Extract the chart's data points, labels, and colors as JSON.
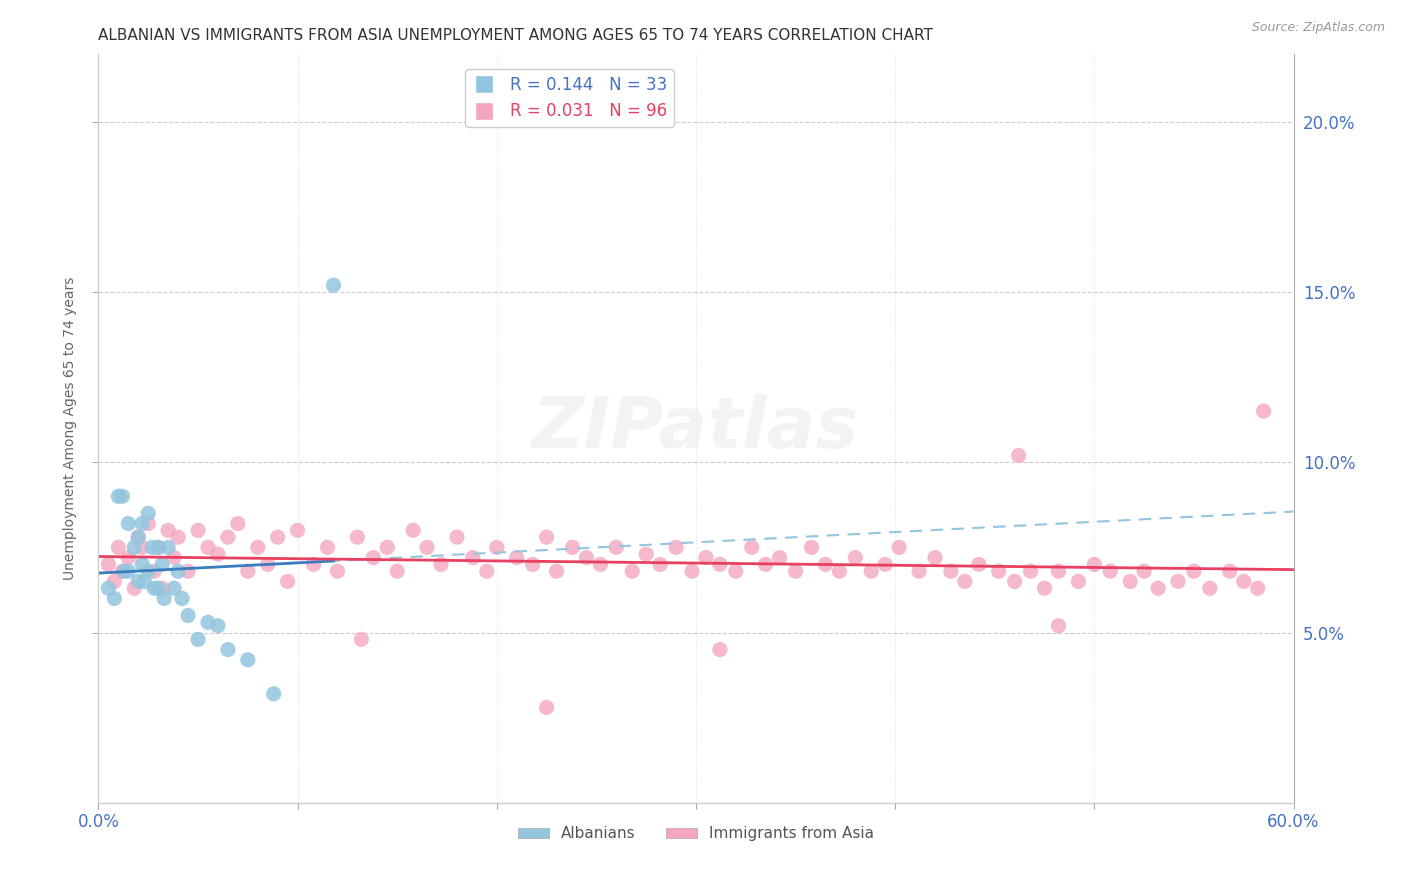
{
  "title": "ALBANIAN VS IMMIGRANTS FROM ASIA UNEMPLOYMENT AMONG AGES 65 TO 74 YEARS CORRELATION CHART",
  "source": "Source: ZipAtlas.com",
  "ylabel": "Unemployment Among Ages 65 to 74 years",
  "xlim": [
    0.0,
    0.6
  ],
  "ylim": [
    0.0,
    0.22
  ],
  "yticks_right": [
    0.05,
    0.1,
    0.15,
    0.2
  ],
  "ytick_labels_right": [
    "5.0%",
    "10.0%",
    "15.0%",
    "20.0%"
  ],
  "xticks": [
    0.0,
    0.1,
    0.2,
    0.3,
    0.4,
    0.5,
    0.6
  ],
  "xtick_labels_show": [
    "0.0%",
    "",
    "",
    "",
    "",
    "",
    "60.0%"
  ],
  "albanian_color": "#92c5de",
  "asia_color": "#f4a6c0",
  "albanian_line_solid_color": "#3a7dbf",
  "albanian_line_dash_color": "#92c5de",
  "asia_line_color": "#e84060",
  "legend_R_albanian": "0.144",
  "legend_N_albanian": "33",
  "legend_R_asia": "0.031",
  "legend_N_asia": "96",
  "background_color": "#ffffff",
  "grid_color": "#cccccc",
  "watermark_text": "ZIPatlas",
  "albanian_x": [
    0.005,
    0.008,
    0.01,
    0.012,
    0.013,
    0.015,
    0.015,
    0.018,
    0.02,
    0.02,
    0.022,
    0.022,
    0.023,
    0.025,
    0.025,
    0.027,
    0.028,
    0.03,
    0.03,
    0.032,
    0.033,
    0.035,
    0.038,
    0.04,
    0.042,
    0.045,
    0.05,
    0.055,
    0.06,
    0.065,
    0.075,
    0.088,
    0.118
  ],
  "albanian_y": [
    0.063,
    0.06,
    0.09,
    0.09,
    0.068,
    0.082,
    0.068,
    0.075,
    0.078,
    0.065,
    0.082,
    0.07,
    0.065,
    0.085,
    0.068,
    0.075,
    0.063,
    0.075,
    0.063,
    0.07,
    0.06,
    0.075,
    0.063,
    0.068,
    0.06,
    0.055,
    0.048,
    0.053,
    0.052,
    0.045,
    0.042,
    0.032,
    0.152
  ],
  "asia_x": [
    0.005,
    0.008,
    0.01,
    0.012,
    0.015,
    0.018,
    0.02,
    0.022,
    0.025,
    0.028,
    0.03,
    0.032,
    0.035,
    0.038,
    0.04,
    0.045,
    0.05,
    0.055,
    0.06,
    0.065,
    0.07,
    0.075,
    0.08,
    0.085,
    0.09,
    0.095,
    0.1,
    0.108,
    0.115,
    0.12,
    0.13,
    0.138,
    0.145,
    0.15,
    0.158,
    0.165,
    0.172,
    0.18,
    0.188,
    0.195,
    0.2,
    0.21,
    0.218,
    0.225,
    0.23,
    0.238,
    0.245,
    0.252,
    0.26,
    0.268,
    0.275,
    0.282,
    0.29,
    0.298,
    0.305,
    0.312,
    0.32,
    0.328,
    0.335,
    0.342,
    0.35,
    0.358,
    0.365,
    0.372,
    0.38,
    0.388,
    0.395,
    0.402,
    0.412,
    0.42,
    0.428,
    0.435,
    0.442,
    0.452,
    0.46,
    0.468,
    0.475,
    0.482,
    0.492,
    0.5,
    0.508,
    0.518,
    0.525,
    0.532,
    0.542,
    0.55,
    0.558,
    0.568,
    0.575,
    0.582,
    0.462,
    0.482,
    0.312,
    0.132,
    0.225,
    0.585
  ],
  "asia_y": [
    0.07,
    0.065,
    0.075,
    0.068,
    0.072,
    0.063,
    0.078,
    0.075,
    0.082,
    0.068,
    0.075,
    0.063,
    0.08,
    0.072,
    0.078,
    0.068,
    0.08,
    0.075,
    0.073,
    0.078,
    0.082,
    0.068,
    0.075,
    0.07,
    0.078,
    0.065,
    0.08,
    0.07,
    0.075,
    0.068,
    0.078,
    0.072,
    0.075,
    0.068,
    0.08,
    0.075,
    0.07,
    0.078,
    0.072,
    0.068,
    0.075,
    0.072,
    0.07,
    0.078,
    0.068,
    0.075,
    0.072,
    0.07,
    0.075,
    0.068,
    0.073,
    0.07,
    0.075,
    0.068,
    0.072,
    0.07,
    0.068,
    0.075,
    0.07,
    0.072,
    0.068,
    0.075,
    0.07,
    0.068,
    0.072,
    0.068,
    0.07,
    0.075,
    0.068,
    0.072,
    0.068,
    0.065,
    0.07,
    0.068,
    0.065,
    0.068,
    0.063,
    0.068,
    0.065,
    0.07,
    0.068,
    0.065,
    0.068,
    0.063,
    0.065,
    0.068,
    0.063,
    0.068,
    0.065,
    0.063,
    0.102,
    0.052,
    0.045,
    0.048,
    0.028,
    0.115
  ]
}
